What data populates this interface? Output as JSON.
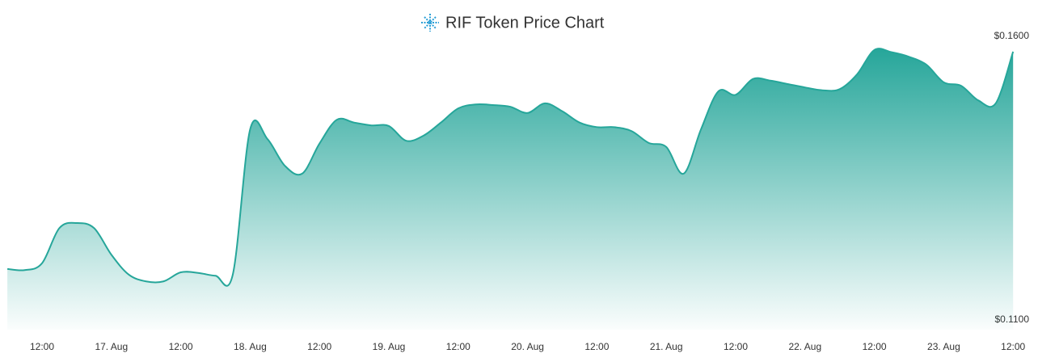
{
  "chart_data": {
    "type": "area",
    "title": "RIF Token Price Chart",
    "color": "#26a69a",
    "categories": [
      null,
      null,
      "12:00",
      null,
      null,
      null,
      "17. Aug",
      null,
      null,
      null,
      "12:00",
      null,
      null,
      null,
      "18. Aug",
      null,
      null,
      null,
      "12:00",
      null,
      null,
      null,
      "19. Aug",
      null,
      null,
      null,
      "12:00",
      null,
      null,
      null,
      "20. Aug",
      null,
      null,
      null,
      "12:00",
      null,
      null,
      null,
      "21. Aug",
      null,
      null,
      null,
      "12:00",
      null,
      null,
      null,
      "22. Aug",
      null,
      null,
      null,
      "12:00",
      null,
      null,
      null,
      "23. Aug",
      null,
      null,
      null,
      "12:00"
    ],
    "values": [
      0.119,
      0.1188,
      0.12,
      0.1262,
      0.1271,
      0.1262,
      0.1215,
      0.118,
      0.1168,
      0.1168,
      0.1184,
      0.1183,
      0.1178,
      0.118,
      0.1436,
      0.1419,
      0.1372,
      0.1358,
      0.1411,
      0.1453,
      0.1448,
      0.1443,
      0.1442,
      0.1416,
      0.1425,
      0.1448,
      0.1473,
      0.148,
      0.1479,
      0.1476,
      0.1465,
      0.1482,
      0.1468,
      0.1448,
      0.144,
      0.144,
      0.1433,
      0.1412,
      0.1405,
      0.1358,
      0.1436,
      0.1503,
      0.1497,
      0.1525,
      0.1522,
      0.1516,
      0.151,
      0.1505,
      0.1507,
      0.1533,
      0.1576,
      0.1572,
      0.1564,
      0.155,
      0.1519,
      0.1513,
      0.1487,
      0.1482,
      0.1573
    ],
    "ylim": [
      0.11,
      0.16
    ],
    "yticks": [
      {
        "value": 0.11,
        "label": "$0.1100"
      },
      {
        "value": 0.16,
        "label": "$0.1600"
      }
    ]
  }
}
